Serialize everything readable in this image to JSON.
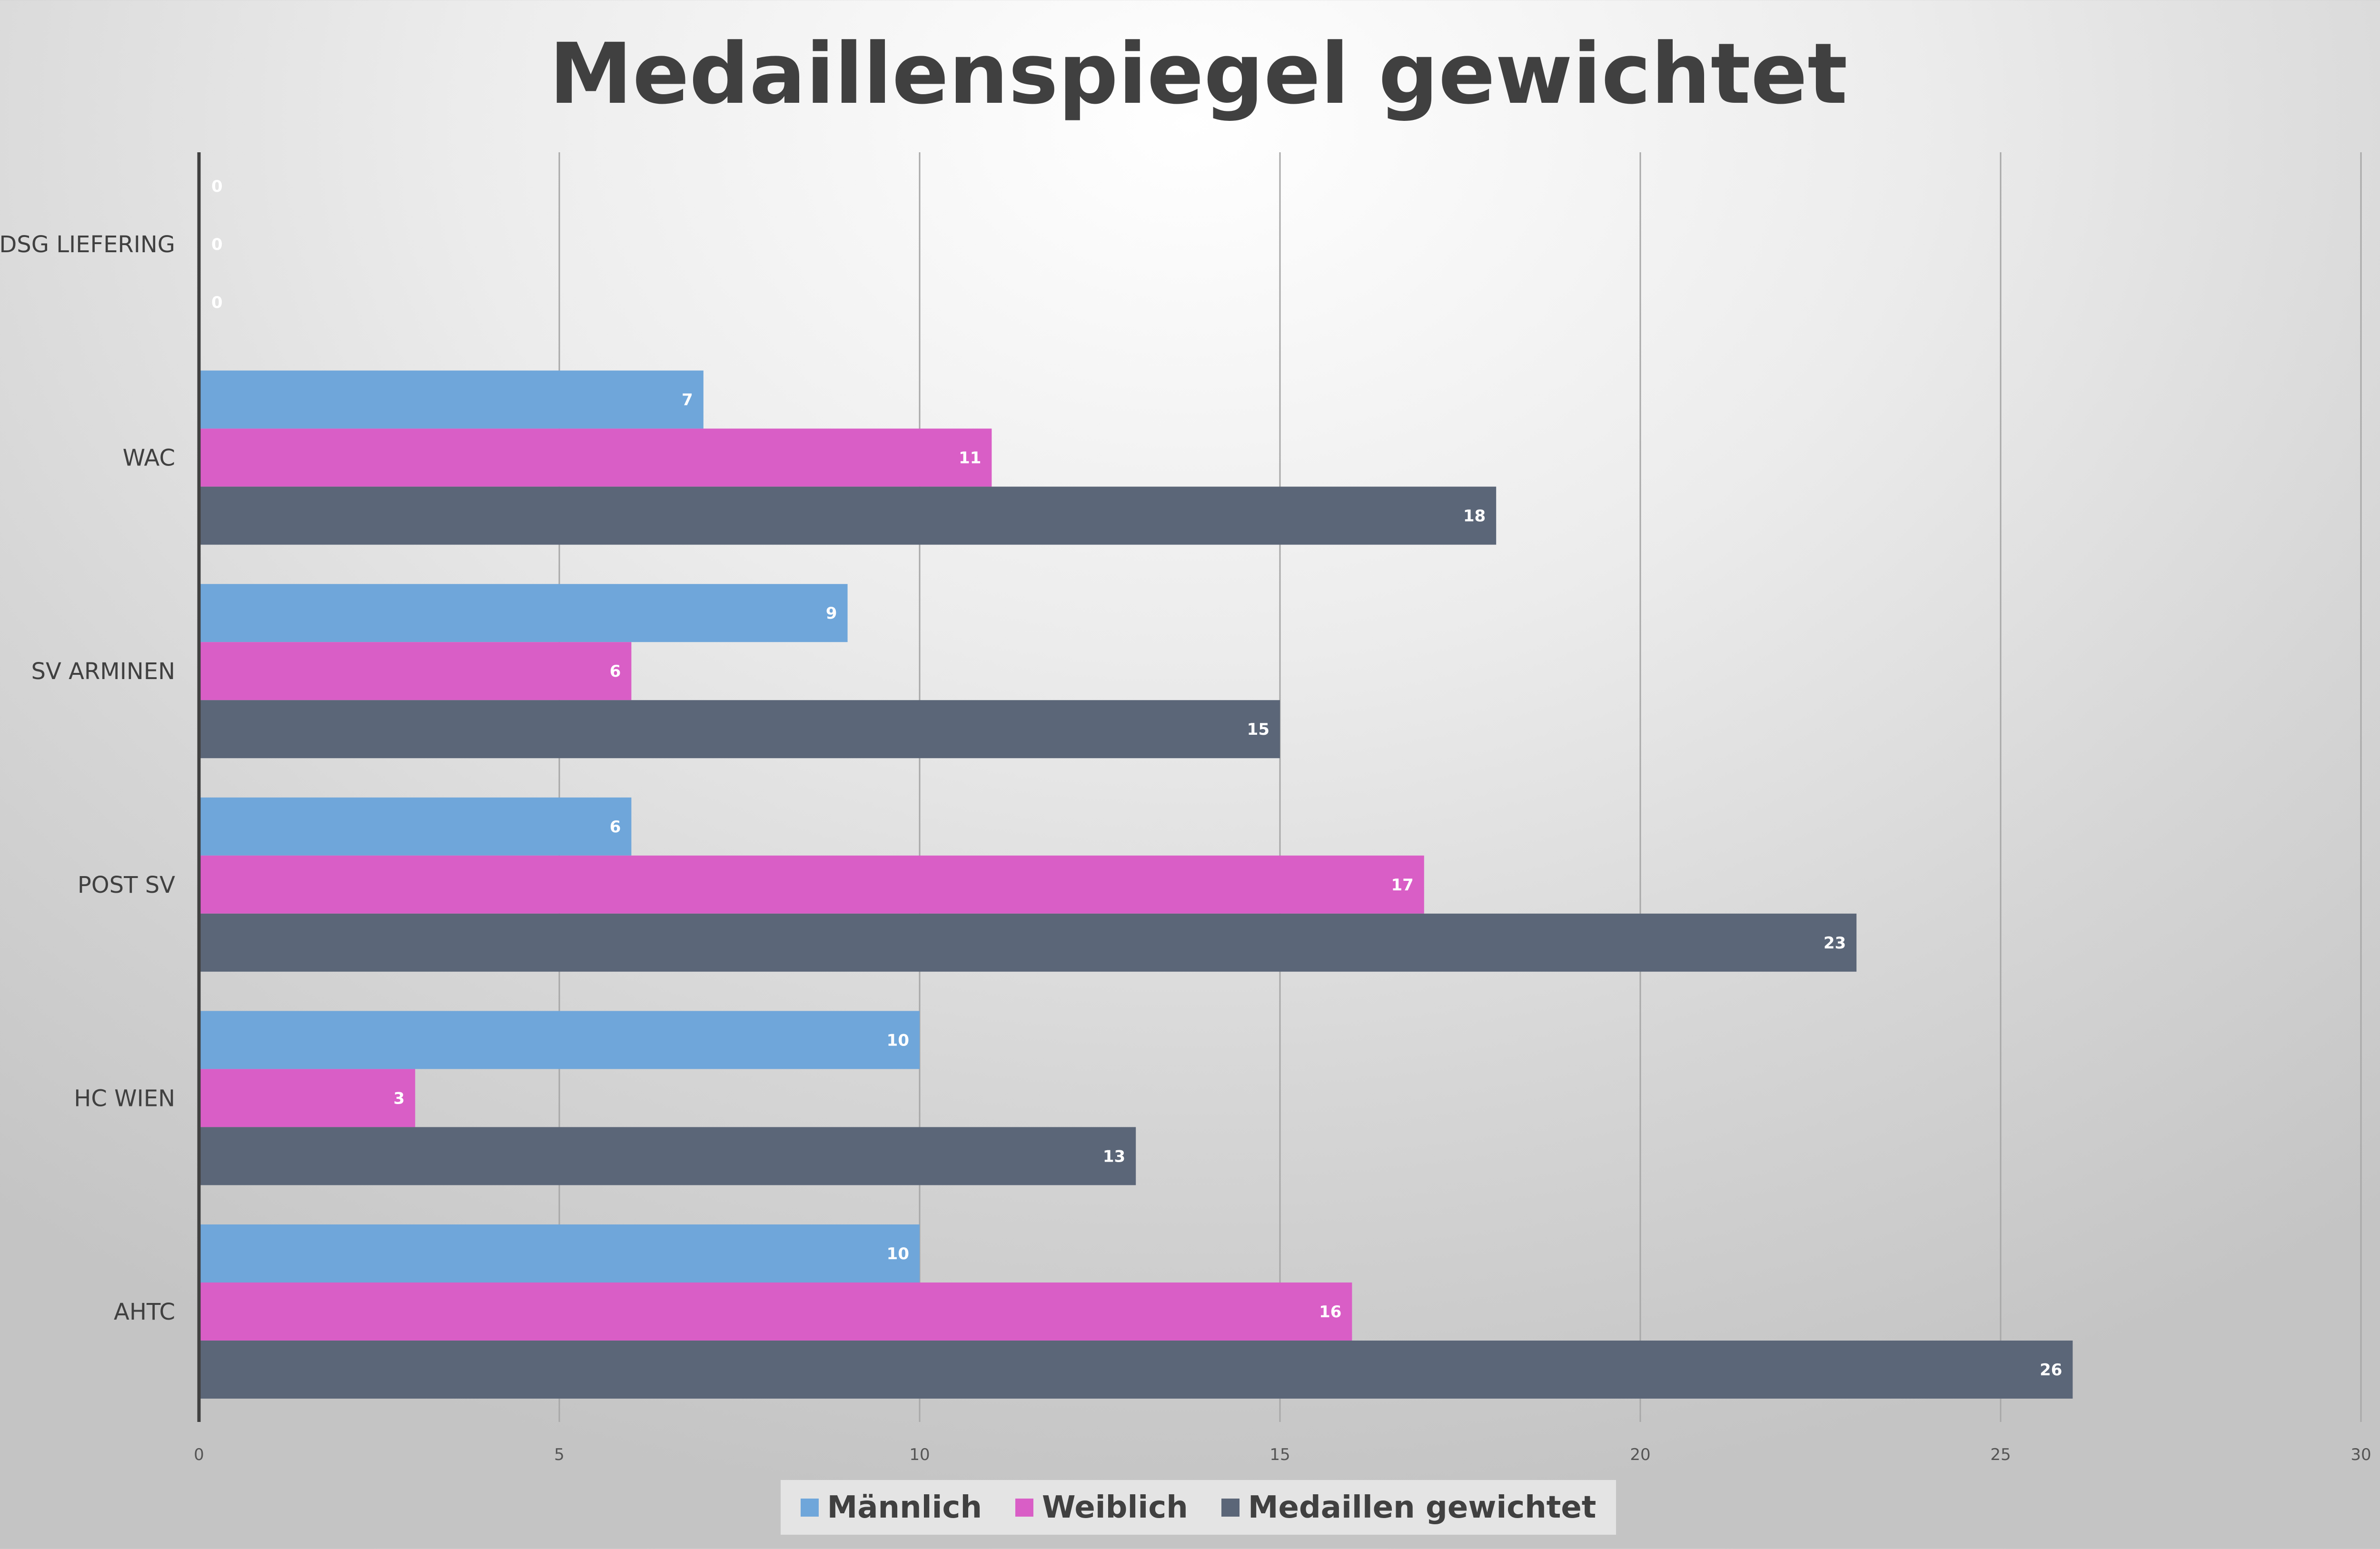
{
  "chart_data": {
    "type": "bar",
    "orientation": "horizontal",
    "title": "Medaillenspiegel gewichtet",
    "xlabel": "",
    "ylabel": "",
    "categories": [
      "DSG LIEFERING",
      "WAC",
      "SV ARMINEN",
      "POST SV",
      "HC WIEN",
      "AHTC"
    ],
    "series": [
      {
        "name": "Männlich",
        "color": "#6fa6da",
        "values": [
          0,
          7,
          9,
          6,
          10,
          10
        ]
      },
      {
        "name": "Weiblich",
        "color": "#d95ec6",
        "values": [
          0,
          11,
          6,
          17,
          3,
          16
        ]
      },
      {
        "name": "Medaillen gewichtet",
        "color": "#5b6678",
        "values": [
          0,
          18,
          15,
          23,
          13,
          26
        ]
      }
    ],
    "xlim": [
      0,
      30
    ],
    "xticks": [
      "0",
      "5",
      "10",
      "15",
      "20",
      "25",
      "30"
    ],
    "grid": true,
    "legend_position": "bottom",
    "data_labels": true
  }
}
